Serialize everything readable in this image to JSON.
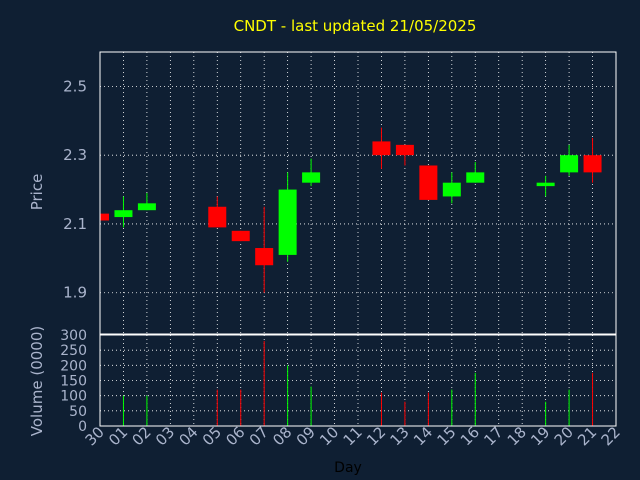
{
  "chart_data": {
    "type": "candlestick",
    "title": "CNDT - last updated 21/05/2025",
    "xlabel": "Day",
    "price_ylabel": "Price",
    "volume_ylabel": "Volume (0000)",
    "price_ylim": [
      1.78,
      2.6
    ],
    "price_yticks": [
      "1.9",
      "2.1",
      "2.3",
      "2.5"
    ],
    "volume_ylim": [
      0,
      300
    ],
    "volume_yticks": [
      "0",
      "50",
      "100",
      "150",
      "200",
      "250",
      "300"
    ],
    "days": [
      "30",
      "01",
      "02",
      "03",
      "04",
      "05",
      "06",
      "07",
      "08",
      "09",
      "10",
      "11",
      "12",
      "13",
      "14",
      "15",
      "16",
      "17",
      "18",
      "19",
      "20",
      "21",
      "22"
    ],
    "candles": [
      {
        "day": "30",
        "open": 2.13,
        "high": 2.13,
        "low": 2.1,
        "close": 2.11,
        "volume": 0
      },
      {
        "day": "01",
        "open": 2.12,
        "high": 2.18,
        "low": 2.09,
        "close": 2.14,
        "volume": 100
      },
      {
        "day": "02",
        "open": 2.14,
        "high": 2.19,
        "low": 2.14,
        "close": 2.16,
        "volume": 100
      },
      {
        "day": "05",
        "open": 2.15,
        "high": 2.18,
        "low": 2.09,
        "close": 2.09,
        "volume": 120
      },
      {
        "day": "06",
        "open": 2.08,
        "high": 2.08,
        "low": 2.05,
        "close": 2.05,
        "volume": 120
      },
      {
        "day": "07",
        "open": 2.03,
        "high": 2.15,
        "low": 1.9,
        "close": 1.98,
        "volume": 280
      },
      {
        "day": "08",
        "open": 2.01,
        "high": 2.25,
        "low": 1.99,
        "close": 2.2,
        "volume": 200
      },
      {
        "day": "09",
        "open": 2.22,
        "high": 2.29,
        "low": 2.21,
        "close": 2.25,
        "volume": 130
      },
      {
        "day": "12",
        "open": 2.34,
        "high": 2.38,
        "low": 2.26,
        "close": 2.3,
        "volume": 110
      },
      {
        "day": "13",
        "open": 2.33,
        "high": 2.33,
        "low": 2.27,
        "close": 2.3,
        "volume": 80
      },
      {
        "day": "14",
        "open": 2.27,
        "high": 2.27,
        "low": 2.17,
        "close": 2.17,
        "volume": 110
      },
      {
        "day": "15",
        "open": 2.18,
        "high": 2.25,
        "low": 2.16,
        "close": 2.22,
        "volume": 120
      },
      {
        "day": "16",
        "open": 2.22,
        "high": 2.28,
        "low": 2.22,
        "close": 2.25,
        "volume": 175
      },
      {
        "day": "19",
        "open": 2.21,
        "high": 2.24,
        "low": 2.18,
        "close": 2.22,
        "volume": 80
      },
      {
        "day": "20",
        "open": 2.25,
        "high": 2.33,
        "low": 2.24,
        "close": 2.3,
        "volume": 120
      },
      {
        "day": "21",
        "open": 2.3,
        "high": 2.35,
        "low": 2.22,
        "close": 2.25,
        "volume": 175
      }
    ],
    "colors": {
      "background": "#0f1f33",
      "up": "#00ff00",
      "down": "#ff0000",
      "grid": "#ffffff",
      "text": "#aab4cc",
      "title": "#ffff00",
      "frame": "#ffffff",
      "xlabel": "#000000"
    },
    "grid": true
  }
}
